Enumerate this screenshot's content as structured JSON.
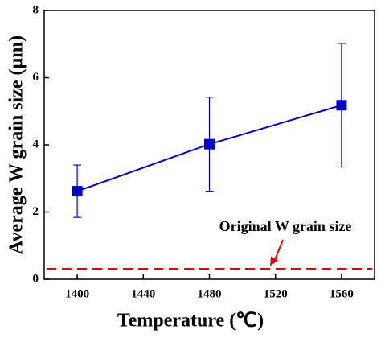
{
  "chart_data": {
    "type": "line",
    "x_label": "Temperature (℃)",
    "y_label": "Average W grain size (μm)",
    "x": [
      1400,
      1480,
      1560
    ],
    "series": [
      {
        "color": "#0000cc",
        "values": [
          2.62,
          4.02,
          5.18
        ],
        "errors": [
          0.78,
          1.4,
          1.84
        ]
      }
    ],
    "xlim": [
      1380,
      1580
    ],
    "xticks": [
      1400,
      1440,
      1480,
      1520,
      1560
    ],
    "ylim": [
      0,
      8
    ],
    "yticks": [
      0,
      2,
      4,
      6,
      8
    ],
    "reference_line": {
      "value": 0.3,
      "label": "Original W grain size",
      "color": "#e00000"
    }
  }
}
